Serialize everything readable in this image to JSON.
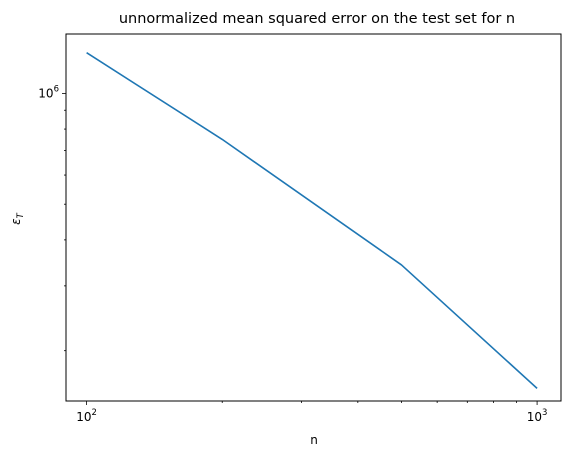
{
  "chart_data": {
    "type": "line",
    "title": "unnormalized mean squared error on the test set for n",
    "xlabel": "n",
    "ylabel": "ε_T",
    "xscale": "log",
    "yscale": "log",
    "xlim": [
      90,
      1130
    ],
    "ylim": [
      146000,
      1450000
    ],
    "grid": false,
    "x_major_ticks": [
      {
        "value": 100,
        "label_base": "10",
        "label_exp": "2"
      },
      {
        "value": 1000,
        "label_base": "10",
        "label_exp": "3"
      }
    ],
    "y_major_ticks": [
      {
        "value": 1000000,
        "label_base": "10",
        "label_exp": "6"
      }
    ],
    "x_minor_ticks": [
      200,
      300,
      400,
      500,
      600,
      700,
      800,
      900
    ],
    "y_minor_ticks": [
      200000,
      300000,
      400000,
      500000,
      600000,
      700000,
      800000,
      900000
    ],
    "series": [
      {
        "color": "#1f77b4",
        "x": [
          100,
          200,
          500,
          1000
        ],
        "y": [
          1290000,
          750000,
          342000,
          158000
        ]
      }
    ]
  }
}
